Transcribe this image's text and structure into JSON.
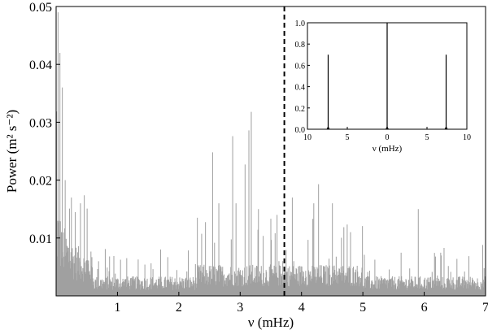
{
  "chart_data": [
    {
      "type": "line",
      "title": "",
      "xlabel": "ν (mHz)",
      "ylabel": "Power (m² s⁻²)",
      "xlim": [
        0,
        7
      ],
      "ylim": [
        0,
        0.05
      ],
      "x_ticks": [
        1,
        2,
        3,
        4,
        5,
        6,
        7
      ],
      "y_ticks": [
        0.01,
        0.02,
        0.03,
        0.04,
        0.05
      ],
      "y_tick_labels": [
        "0.01",
        "0.02",
        "0.03",
        "0.04",
        "0.05"
      ],
      "grid": false,
      "series": [
        {
          "color": "#a0a0a0",
          "description_noise_floor": 0.002,
          "peaks": [
            {
              "x": 0.03,
              "y": 0.049
            },
            {
              "x": 0.06,
              "y": 0.042
            },
            {
              "x": 0.1,
              "y": 0.036
            },
            {
              "x": 0.15,
              "y": 0.02
            },
            {
              "x": 0.25,
              "y": 0.017
            },
            {
              "x": 0.4,
              "y": 0.016
            },
            {
              "x": 2.55,
              "y": 0.0248
            },
            {
              "x": 2.65,
              "y": 0.016
            },
            {
              "x": 2.88,
              "y": 0.0276
            },
            {
              "x": 2.93,
              "y": 0.016
            },
            {
              "x": 3.08,
              "y": 0.0227
            },
            {
              "x": 3.14,
              "y": 0.0286
            },
            {
              "x": 3.18,
              "y": 0.0318
            },
            {
              "x": 3.3,
              "y": 0.015
            },
            {
              "x": 3.6,
              "y": 0.014
            },
            {
              "x": 3.85,
              "y": 0.017
            },
            {
              "x": 4.2,
              "y": 0.016
            },
            {
              "x": 4.28,
              "y": 0.0193
            },
            {
              "x": 4.5,
              "y": 0.016
            },
            {
              "x": 4.8,
              "y": 0.011
            },
            {
              "x": 5.9,
              "y": 0.015
            },
            {
              "x": 6.95,
              "y": 0.0088
            }
          ]
        }
      ],
      "vline": {
        "x": 3.72,
        "style": "dashed",
        "color": "#000000"
      }
    },
    {
      "type": "line",
      "title": "",
      "xlabel": "ν (mHz)",
      "ylabel": "",
      "xlim": [
        -10,
        10
      ],
      "ylim": [
        0,
        1.0
      ],
      "x_tick_values": [
        -10,
        -5,
        0,
        5,
        10
      ],
      "x_tick_labels": [
        "10",
        "5",
        "0",
        "5",
        "10"
      ],
      "y_ticks": [
        0.0,
        0.2,
        0.4,
        0.6,
        0.8,
        1.0
      ],
      "y_tick_labels": [
        "0.0",
        "0.2",
        "0.4",
        "0.6",
        "0.8",
        "1.0"
      ],
      "grid": false,
      "series": [
        {
          "color": "#000000",
          "spikes": [
            {
              "x": -7.4,
              "y": 0.7
            },
            {
              "x": 0.0,
              "y": 1.0
            },
            {
              "x": 7.4,
              "y": 0.7
            }
          ]
        }
      ]
    }
  ]
}
